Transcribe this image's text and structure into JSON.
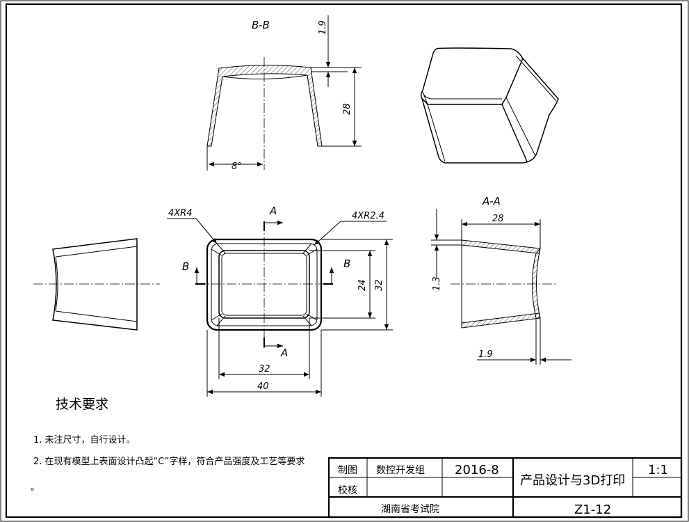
{
  "views": {
    "section_bb": {
      "title": "B-B",
      "dim_thickness": "1.9",
      "dim_height": "28",
      "dim_angle": "8°"
    },
    "section_aa": {
      "title": "A-A",
      "dim_width": "28",
      "dim_thickness_left": "1.3",
      "dim_thickness_right": "1.9"
    },
    "top_view": {
      "radius_outer": "4XR4",
      "radius_inner": "4XR2.4",
      "cut_a": "A",
      "cut_a_bottom": "A",
      "cut_b_left": "B",
      "cut_b_right": "B",
      "dim_inner_height": "24",
      "dim_outer_height": "32",
      "dim_inner_width": "32",
      "dim_outer_width": "40"
    }
  },
  "requirements": {
    "title": "技术要求",
    "items": [
      "1. 未注尺寸，自行设计。",
      "2. 在现有模型上表面设计凸起“C”字样，符合产品强度及工艺等要求",
      "。"
    ]
  },
  "title_block": {
    "draw_label": "制图",
    "check_label": "校核",
    "designer": "数控开发组",
    "date": "2016-8",
    "product_name": "产品设计与3D打印",
    "scale": "1:1",
    "institution": "湖南省考试院",
    "drawing_number": "Z1-12"
  }
}
